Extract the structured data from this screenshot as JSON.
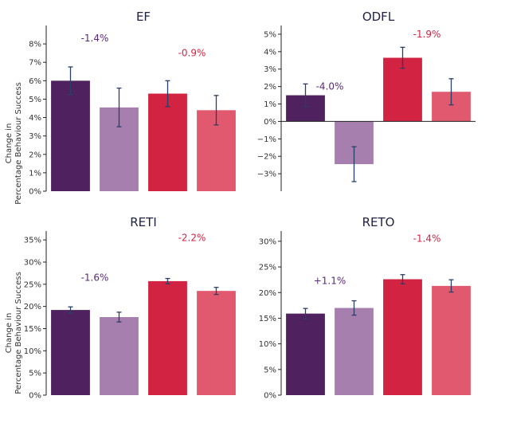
{
  "ylabel_lines": [
    "Change in",
    "Percentage Behaviour Success"
  ],
  "colors": [
    "#4f215f",
    "#a67fae",
    "#d22342",
    "#e0596e"
  ],
  "annotation_colors": {
    "purple": "#5a2a78",
    "red": "#d22342"
  },
  "chart_data": [
    {
      "type": "bar",
      "title": "EF",
      "values": [
        6.0,
        4.55,
        5.3,
        4.4
      ],
      "errors": [
        0.75,
        1.05,
        0.7,
        0.8
      ],
      "ylim": [
        0,
        9
      ],
      "ticks": [
        0,
        1,
        2,
        3,
        4,
        5,
        6,
        7,
        8
      ],
      "tick_labels": [
        "0%",
        "1%",
        "2%",
        "3%",
        "4%",
        "5%",
        "6%",
        "7%",
        "8%"
      ],
      "annotations": [
        {
          "text": "-1.4%",
          "color": "purple",
          "group": 0,
          "y": 8.3
        },
        {
          "text": "-0.9%",
          "color": "red",
          "group": 1,
          "y": 7.5
        }
      ]
    },
    {
      "type": "bar",
      "title": "ODFL",
      "values": [
        1.5,
        -2.45,
        3.65,
        1.7
      ],
      "errors": [
        0.65,
        1.0,
        0.6,
        0.75
      ],
      "ylim": [
        -4,
        5.5
      ],
      "ticks": [
        -3,
        -2,
        -1,
        0,
        1,
        2,
        3,
        4,
        5
      ],
      "tick_labels": [
        "−3%",
        "−2%",
        "−1%",
        "0%",
        "1%",
        "2%",
        "3%",
        "4%",
        "5%"
      ],
      "annotations": [
        {
          "text": "-4.0%",
          "color": "purple",
          "group": 0,
          "y": 2.0
        },
        {
          "text": "-1.9%",
          "color": "red",
          "group": 1,
          "y": 5.0
        }
      ]
    },
    {
      "type": "bar",
      "title": "RETI",
      "values": [
        19.2,
        17.6,
        25.7,
        23.5
      ],
      "errors": [
        0.7,
        1.1,
        0.6,
        0.8
      ],
      "ylim": [
        0,
        37
      ],
      "ticks": [
        0,
        5,
        10,
        15,
        20,
        25,
        30,
        35
      ],
      "tick_labels": [
        "0%",
        "5%",
        "10%",
        "15%",
        "20%",
        "25%",
        "30%",
        "35%"
      ],
      "annotations": [
        {
          "text": "-1.6%",
          "color": "purple",
          "group": 0,
          "y": 26.5
        },
        {
          "text": "-2.2%",
          "color": "red",
          "group": 1,
          "y": 35.5
        }
      ]
    },
    {
      "type": "bar",
      "title": "RETO",
      "values": [
        15.9,
        17.0,
        22.6,
        21.3
      ],
      "errors": [
        1.0,
        1.4,
        0.9,
        1.2
      ],
      "ylim": [
        0,
        32
      ],
      "ticks": [
        0,
        5,
        10,
        15,
        20,
        25,
        30
      ],
      "tick_labels": [
        "0%",
        "5%",
        "10%",
        "15%",
        "20%",
        "25%",
        "30%"
      ],
      "annotations": [
        {
          "text": "+1.1%",
          "color": "purple",
          "group": 0,
          "y": 22.3
        },
        {
          "text": "-1.4%",
          "color": "red",
          "group": 1,
          "y": 30.5
        }
      ]
    }
  ]
}
